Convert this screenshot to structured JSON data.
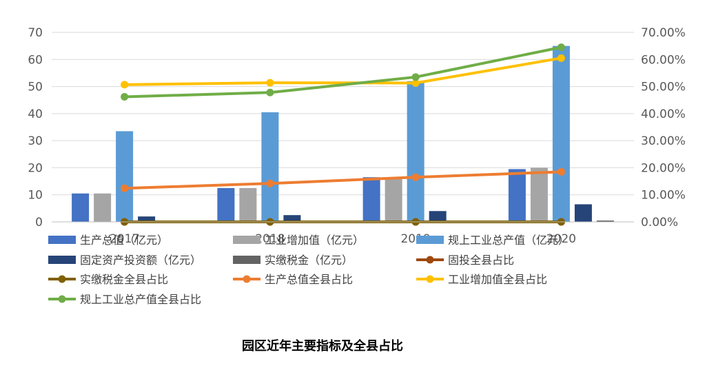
{
  "chart_data": {
    "type": "bar",
    "title": "园区近年主要指标及全县占比",
    "categories": [
      "2017",
      "2018",
      "2019",
      "2020"
    ],
    "y_left": {
      "ylim": [
        0,
        70
      ],
      "ticks": [
        0,
        10,
        20,
        30,
        40,
        50,
        60,
        70
      ]
    },
    "y_right": {
      "ylim": [
        0,
        0.7
      ],
      "tick_labels": [
        "0.00%",
        "10.00%",
        "20.00%",
        "30.00%",
        "40.00%",
        "50.00%",
        "60.00%",
        "70.00%"
      ]
    },
    "bar_series": [
      {
        "name": "生产总值（亿元）",
        "color": "#4472C4",
        "values": [
          10.5,
          12.5,
          16.5,
          19.5
        ]
      },
      {
        "name": "工业增加值（亿元）",
        "color": "#A5A5A5",
        "values": [
          10.5,
          12.5,
          16.5,
          20
        ]
      },
      {
        "name": "规上工业总产值（亿元）",
        "color": "#5B9BD5",
        "values": [
          33.5,
          40.5,
          52,
          65
        ]
      },
      {
        "name": "固定资产投资额（亿元）",
        "color": "#264478",
        "values": [
          2,
          2.5,
          4,
          6.5
        ]
      },
      {
        "name": "实缴税金（亿元）",
        "color": "#636363",
        "values": [
          0.2,
          0.2,
          0.2,
          0.5
        ]
      }
    ],
    "line_series": [
      {
        "name": "固投全县占比",
        "color": "#9E480E",
        "values": [
          0,
          0,
          0,
          0
        ]
      },
      {
        "name": "实缴税金全县占比",
        "color": "#806000",
        "values": [
          0,
          0,
          0,
          0
        ]
      },
      {
        "name": "生产总值全县占比",
        "color": "#ED7D31",
        "values": [
          0.124,
          0.142,
          0.165,
          0.185
        ]
      },
      {
        "name": "工业增加值全县占比",
        "color": "#FFC000",
        "values": [
          0.507,
          0.514,
          0.513,
          0.605
        ]
      },
      {
        "name": "规上工业总产值全县占比",
        "color": "#70AD47",
        "values": [
          0.462,
          0.478,
          0.535,
          0.645
        ]
      }
    ],
    "legend_position": "bottom",
    "grid": true
  }
}
